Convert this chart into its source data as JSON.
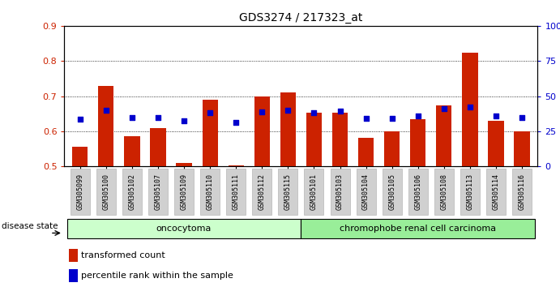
{
  "title": "GDS3274 / 217323_at",
  "samples": [
    "GSM305099",
    "GSM305100",
    "GSM305102",
    "GSM305107",
    "GSM305109",
    "GSM305110",
    "GSM305111",
    "GSM305112",
    "GSM305115",
    "GSM305101",
    "GSM305103",
    "GSM305104",
    "GSM305105",
    "GSM305106",
    "GSM305108",
    "GSM305113",
    "GSM305114",
    "GSM305116"
  ],
  "red_values": [
    0.555,
    0.73,
    0.585,
    0.608,
    0.51,
    0.69,
    0.504,
    0.7,
    0.71,
    0.653,
    0.653,
    0.582,
    0.6,
    0.635,
    0.673,
    0.824,
    0.63,
    0.6
  ],
  "blue_values": [
    0.635,
    0.66,
    0.638,
    0.638,
    0.63,
    0.652,
    0.625,
    0.655,
    0.66,
    0.652,
    0.658,
    0.636,
    0.637,
    0.643,
    0.665,
    0.668,
    0.643,
    0.638
  ],
  "group1_label": "oncocytoma",
  "group1_count": 9,
  "group2_label": "chromophobe renal cell carcinoma",
  "group2_count": 9,
  "group1_color": "#ccffcc",
  "group2_color": "#99ee99",
  "bar_color": "#cc2200",
  "dot_color": "#0000cc",
  "ylim_left": [
    0.5,
    0.9
  ],
  "ylim_right": [
    0,
    100
  ],
  "yticks_left": [
    0.5,
    0.6,
    0.7,
    0.8,
    0.9
  ],
  "yticks_right": [
    0,
    25,
    50,
    75,
    100
  ],
  "ylabel_left_color": "#cc2200",
  "ylabel_right_color": "#0000cc",
  "title_color": "#000000",
  "legend_red": "transformed count",
  "legend_blue": "percentile rank within the sample",
  "disease_state_label": "disease state",
  "bar_width": 0.6
}
